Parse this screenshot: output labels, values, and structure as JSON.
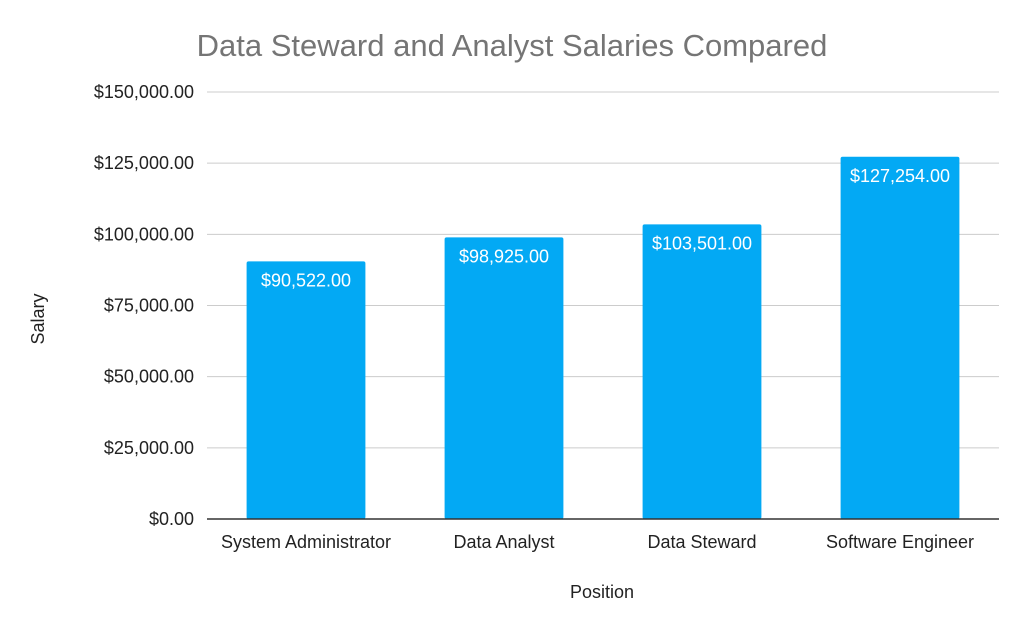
{
  "chart_data": {
    "type": "bar",
    "title": "Data Steward and Analyst Salaries Compared",
    "xlabel": "Position",
    "ylabel": "Salary",
    "categories": [
      "System Administrator",
      "Data Analyst",
      "Data Steward",
      "Software Engineer"
    ],
    "values": [
      90522,
      98925,
      103501,
      127254
    ],
    "data_labels": [
      "$90,522.00",
      "$98,925.00",
      "$103,501.00",
      "$127,254.00"
    ],
    "ylim": [
      0,
      150000
    ],
    "yticks": [
      0,
      25000,
      50000,
      75000,
      100000,
      125000,
      150000
    ],
    "ytick_labels": [
      "$0.00",
      "$25,000.00",
      "$50,000.00",
      "$75,000.00",
      "$100,000.00",
      "$125,000.00",
      "$150,000.00"
    ],
    "grid": true,
    "legend": "none",
    "bar_color": "#03a9f4"
  }
}
